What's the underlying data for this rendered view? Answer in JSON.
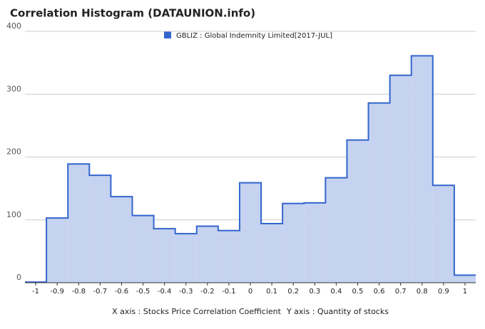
{
  "chart_data": {
    "type": "histogram",
    "title": "Correlation Histogram (DATAUNION.info)",
    "series": [
      {
        "name": "GBLIZ : Global Indemnity Limited[2017-JUL]",
        "color": "#3366cc",
        "values": [
          1,
          103,
          189,
          171,
          137,
          107,
          86,
          78,
          90,
          83,
          159,
          94,
          126,
          127,
          167,
          227,
          286,
          330,
          361,
          155,
          12
        ]
      }
    ],
    "bins": [
      -1.05,
      -0.95,
      -0.85,
      -0.75,
      -0.65,
      -0.55,
      -0.45,
      -0.35,
      -0.25,
      -0.15,
      -0.05,
      0.05,
      0.15,
      0.25,
      0.35,
      0.45,
      0.55,
      0.65,
      0.75,
      0.85,
      0.95,
      1.05
    ],
    "xlim": [
      -1.05,
      1.05
    ],
    "xticks": [
      -1,
      -0.9,
      -0.8,
      -0.7,
      -0.6,
      -0.5,
      -0.4,
      -0.3,
      -0.2,
      -0.1,
      0,
      0.1,
      0.2,
      0.3,
      0.4,
      0.5,
      0.6,
      0.7,
      0.8,
      0.9,
      1
    ],
    "ylim": [
      0,
      400
    ],
    "yticks": [
      0,
      100,
      200,
      300,
      400
    ],
    "grid": true,
    "xlabel": "X axis : Stocks Price Correlation Coefficient",
    "ylabel": "Y axis : Quantity of stocks"
  }
}
